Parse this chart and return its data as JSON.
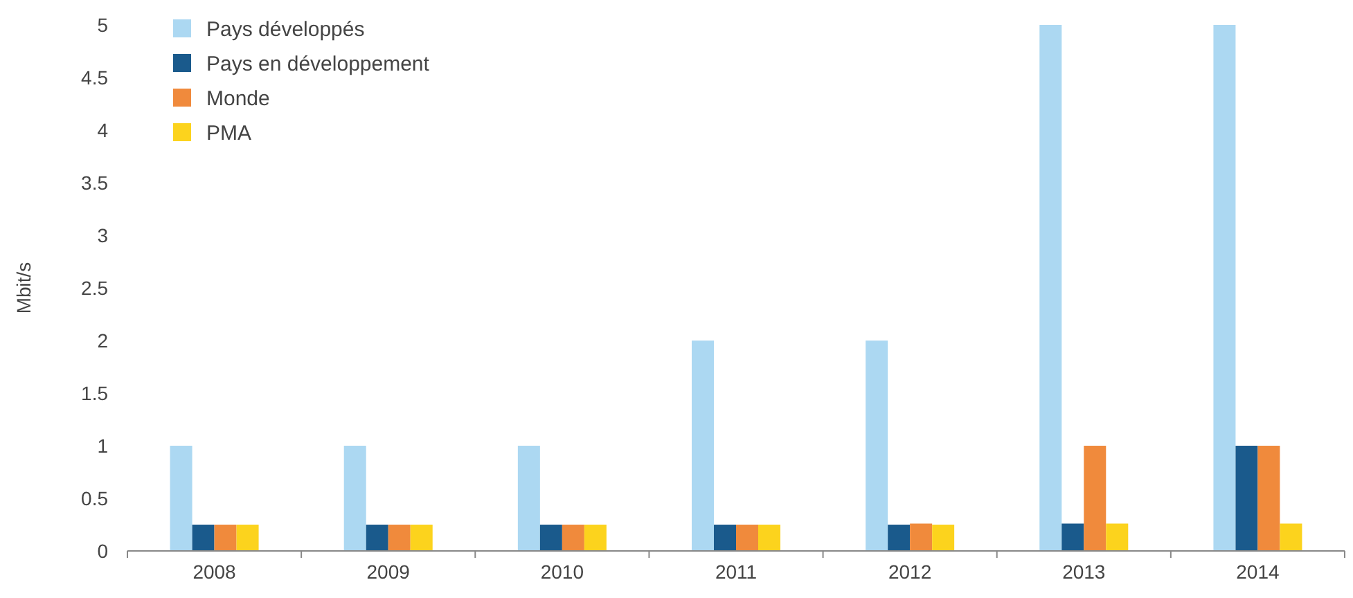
{
  "chart_data": {
    "type": "bar",
    "ylabel": "Mbit/s",
    "categories": [
      "2008",
      "2009",
      "2010",
      "2011",
      "2012",
      "2013",
      "2014"
    ],
    "series": [
      {
        "name": "Pays développés",
        "color": "#acd8f2",
        "values": [
          1,
          1,
          1,
          2,
          2,
          5,
          5
        ]
      },
      {
        "name": "Pays en développement",
        "color": "#1a5a8c",
        "values": [
          0.25,
          0.25,
          0.25,
          0.25,
          0.25,
          0.26,
          1
        ]
      },
      {
        "name": "Monde",
        "color": "#f08a3c",
        "values": [
          0.25,
          0.25,
          0.25,
          0.25,
          0.26,
          1,
          1
        ]
      },
      {
        "name": "PMA",
        "color": "#fcd31d",
        "values": [
          0.25,
          0.25,
          0.25,
          0.25,
          0.25,
          0.26,
          0.26
        ]
      }
    ],
    "ylim": [
      0,
      5
    ],
    "yticks": [
      0,
      0.5,
      1,
      1.5,
      2,
      2.5,
      3,
      3.5,
      4,
      4.5,
      5
    ],
    "grid": false,
    "legend": "top left"
  }
}
